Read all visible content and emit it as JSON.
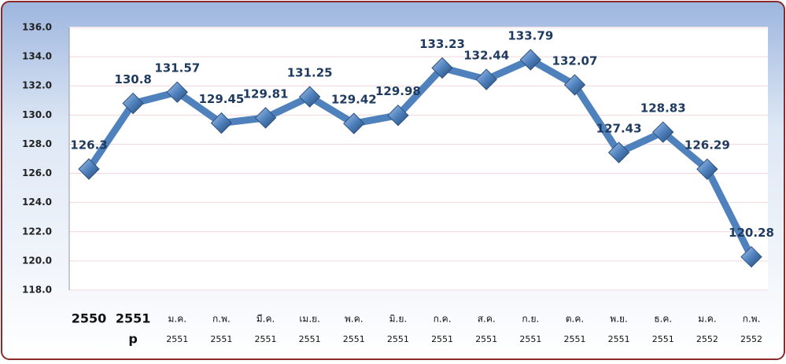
{
  "chart_data": {
    "type": "line",
    "categories": [
      [
        "2550"
      ],
      [
        "2551",
        "p"
      ],
      [
        "ม.ค.",
        "2551"
      ],
      [
        "ก.พ.",
        "2551"
      ],
      [
        "มี.ค.",
        "2551"
      ],
      [
        "เม.ย.",
        "2551"
      ],
      [
        "พ.ค.",
        "2551"
      ],
      [
        "มิ.ย.",
        "2551"
      ],
      [
        "ก.ค.",
        "2551"
      ],
      [
        "ส.ค.",
        "2551"
      ],
      [
        "ก.ย.",
        "2551"
      ],
      [
        "ต.ค.",
        "2551"
      ],
      [
        "พ.ย.",
        "2551"
      ],
      [
        "ธ.ค.",
        "2551"
      ],
      [
        "ม.ค.",
        "2552"
      ],
      [
        "ก.พ.",
        "2552"
      ]
    ],
    "values": [
      126.3,
      130.8,
      131.57,
      129.45,
      129.81,
      131.25,
      129.42,
      129.98,
      133.23,
      132.44,
      133.79,
      132.07,
      127.43,
      128.83,
      126.29,
      120.28
    ],
    "color": "#4f81bd",
    "ylim": [
      118,
      136
    ],
    "yticks": [
      {
        "value": 118,
        "label": "118.0"
      },
      {
        "value": 120,
        "label": "120.0"
      },
      {
        "value": 122,
        "label": "122.0"
      },
      {
        "value": 124,
        "label": "124.0"
      },
      {
        "value": 126,
        "label": "126.0"
      },
      {
        "value": 128,
        "label": "128.0"
      },
      {
        "value": 130,
        "label": "130.0"
      },
      {
        "value": 132,
        "label": "132.0"
      },
      {
        "value": 134,
        "label": "134.0"
      },
      {
        "value": 136,
        "label": "136.0"
      }
    ],
    "grid": true
  }
}
